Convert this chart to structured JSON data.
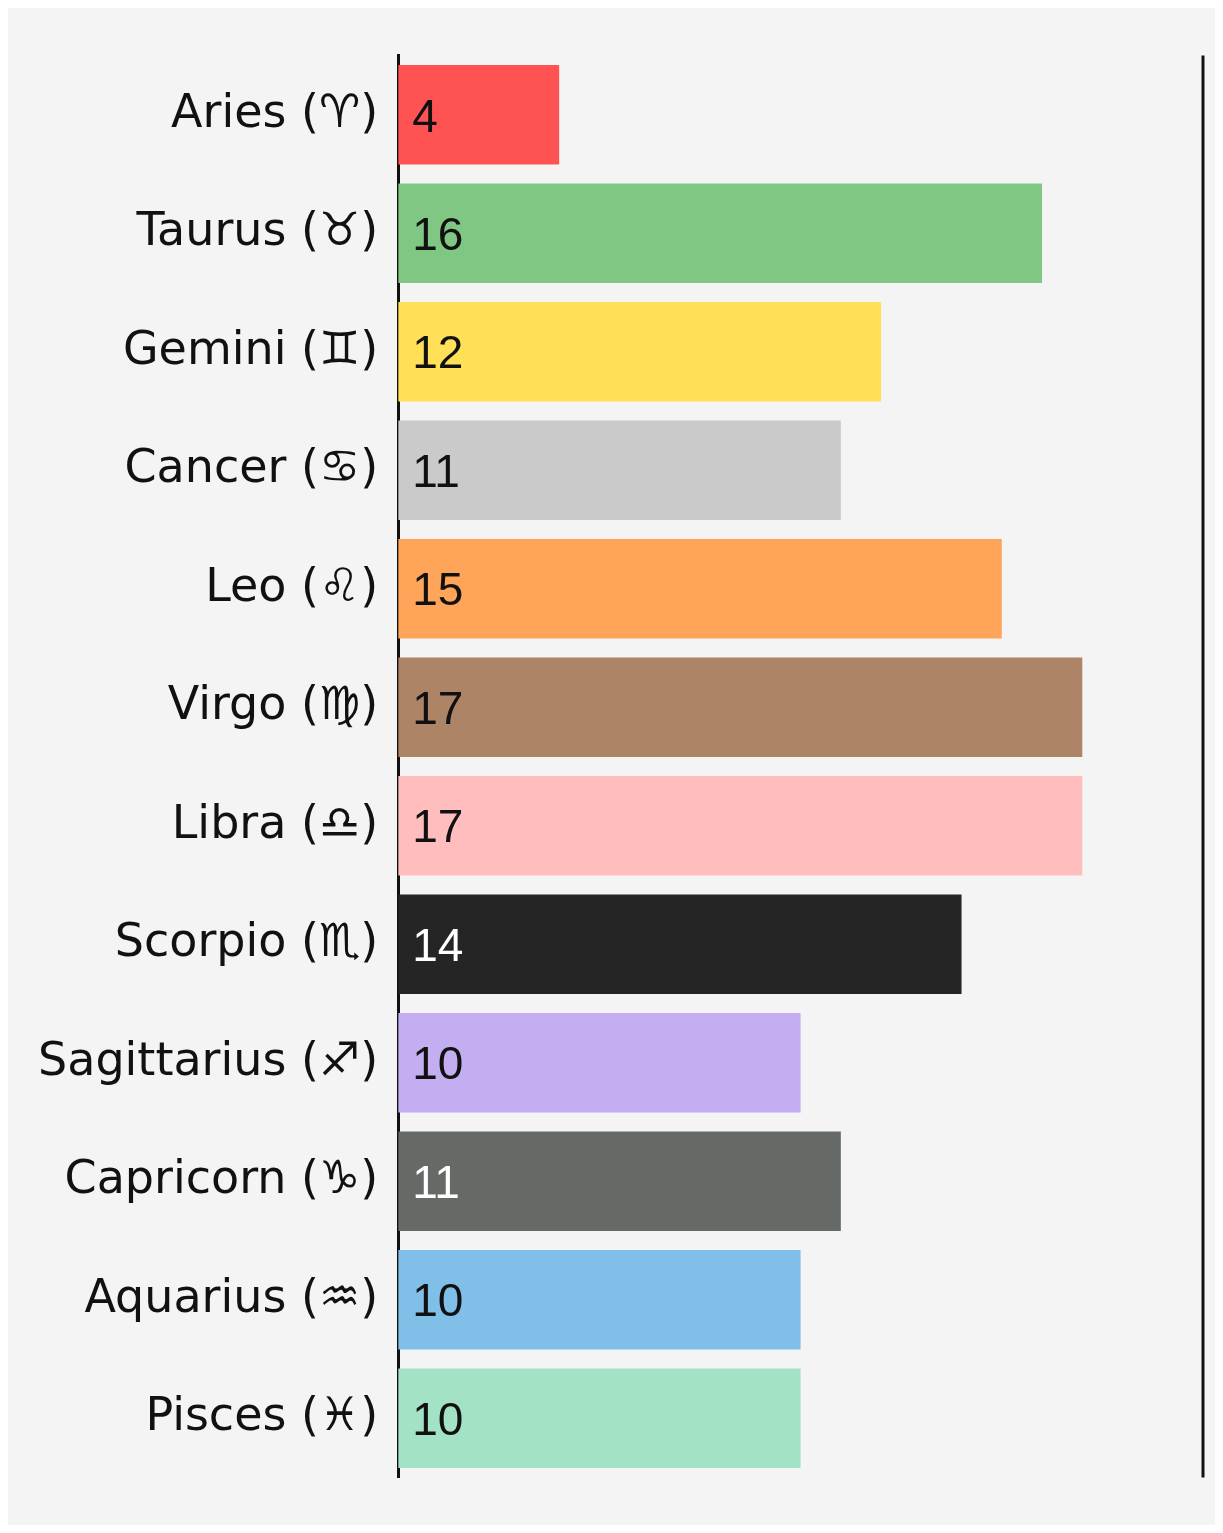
{
  "chart_data": {
    "type": "bar",
    "orientation": "horizontal",
    "categories": [
      "Aries (♈)",
      "Taurus (♉)",
      "Gemini (♊)",
      "Cancer (♋)",
      "Leo (♌)",
      "Virgo (♍)",
      "Libra (♎)",
      "Scorpio (♏)",
      "Sagittarius (♐)",
      "Capricorn (♑)",
      "Aquarius (♒)",
      "Pisces (♓)"
    ],
    "values": [
      4,
      16,
      12,
      11,
      15,
      17,
      17,
      14,
      10,
      11,
      10,
      10
    ],
    "colors": [
      "#ff5252",
      "#81c784",
      "#ffe057",
      "#cacaca",
      "#ffa55a",
      "#ae8467",
      "#ffbdbd",
      "#252525",
      "#c2aef0",
      "#666a66",
      "#80bfe8",
      "#a3e2c5"
    ],
    "xlim": [
      0,
      20
    ],
    "tick_labels": "y",
    "data_labels": true
  }
}
